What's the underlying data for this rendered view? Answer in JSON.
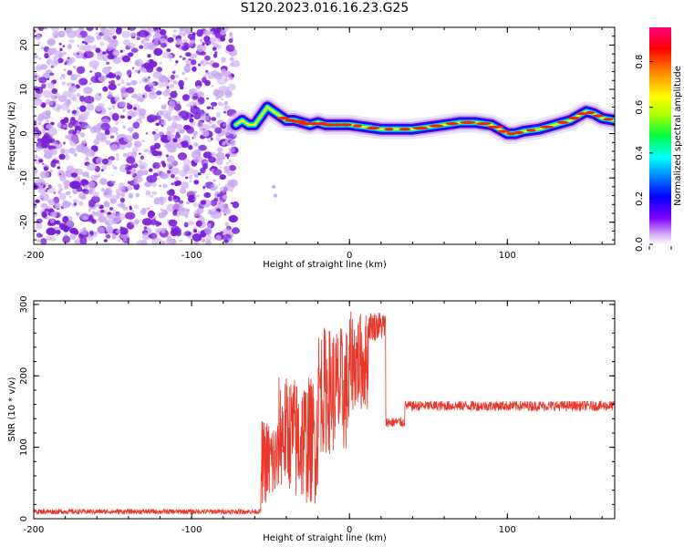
{
  "title": "S120.2023.016.16.23.G25",
  "colors": {
    "line": "#e8372b",
    "axis": "#000000",
    "scatter": "#7a1fd8",
    "scatter_light": "#c9a8f2"
  },
  "chart_data": [
    {
      "type": "heatmap",
      "xlabel": "Height of straight line (km)",
      "ylabel": "Frequency (Hz)",
      "xlim": [
        -200,
        168
      ],
      "ylim": [
        -25,
        24
      ],
      "xticks": [
        -200,
        -100,
        0,
        100
      ],
      "yticks": [
        20,
        10,
        0,
        -10,
        -20
      ],
      "colorbar": {
        "label": "Normalized spectral amplitude",
        "range": [
          0,
          0.95
        ],
        "ticks": [
          0.0,
          0.2,
          0.4,
          0.6,
          0.8
        ]
      },
      "noise_region_x": [
        -200,
        -72
      ],
      "ridge": {
        "x": [
          -72,
          -68,
          -64,
          -60,
          -56,
          -52,
          -48,
          -44,
          -40,
          -35,
          -30,
          -25,
          -20,
          -15,
          -10,
          -5,
          0,
          10,
          20,
          30,
          40,
          50,
          60,
          70,
          80,
          90,
          95,
          100,
          105,
          110,
          120,
          130,
          140,
          145,
          150,
          155,
          160,
          168
        ],
        "y": [
          2,
          3,
          2,
          2,
          4,
          6,
          5,
          4,
          3,
          3,
          2.5,
          2,
          2.5,
          2,
          2,
          2,
          2,
          1.5,
          1,
          1,
          1,
          1.5,
          2,
          2.5,
          2.5,
          2,
          1,
          0,
          0,
          0.5,
          1,
          2,
          3,
          4,
          5,
          4.5,
          3.5,
          3
        ]
      }
    },
    {
      "type": "line",
      "xlabel": "Height of straight line (km)",
      "ylabel": "SNR (10 * v/v)",
      "xlim": [
        -200,
        168
      ],
      "ylim": [
        0,
        305
      ],
      "xticks": [
        -200,
        -100,
        0,
        100
      ],
      "yticks": [
        0,
        100,
        200,
        300
      ],
      "segments": [
        {
          "x_range": [
            -200,
            -56
          ],
          "mean": 10,
          "spread": 6
        },
        {
          "x_range": [
            -56,
            -45
          ],
          "mean": 80,
          "spread": 60
        },
        {
          "x_range": [
            -45,
            -35
          ],
          "mean": 120,
          "spread": 80
        },
        {
          "x_range": [
            -35,
            -20
          ],
          "mean": 110,
          "spread": 90
        },
        {
          "x_range": [
            -20,
            0
          ],
          "mean": 180,
          "spread": 90
        },
        {
          "x_range": [
            0,
            12
          ],
          "mean": 220,
          "spread": 70
        },
        {
          "x_range": [
            12,
            23
          ],
          "mean": 270,
          "spread": 35
        },
        {
          "x_range": [
            23,
            35
          ],
          "mean": 135,
          "spread": 12
        },
        {
          "x_range": [
            35,
            168
          ],
          "mean": 158,
          "spread": 12
        }
      ]
    }
  ]
}
